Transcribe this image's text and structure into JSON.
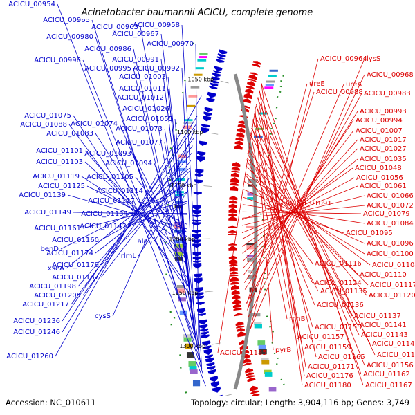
{
  "title": "Acinetobacter baumannii ACICU, complete genome",
  "footer": {
    "accession": "Accession: NC_010611",
    "topology": "Topology: circular; Length: 3,904,116 bp; Genes: 3,749"
  },
  "colors": {
    "forward": "#0000cc",
    "reverse": "#dd0000",
    "backbone": "#888888",
    "gc_skew": "#228b22",
    "background": "#ffffff"
  },
  "scale_labels": [
    "1050 kbp",
    "1100 kbp",
    "1150 kbp",
    "1200 kbp",
    "1250 kbp",
    "1300 kbp",
    "1350 kbp"
  ],
  "forward_labels": [
    "ACICU_00954",
    "ACICU_00965",
    "ACICU_00963",
    "ACICU_00958",
    "ACICU_00980",
    "ACICU_00967",
    "ACICU_00970",
    "ACICU_00986",
    "ACICU_00998",
    "ACICU_00991",
    "ACICU_00995",
    "ACICU_00992",
    "ACICU_01003",
    "ACICU_01011",
    "ACICU_01012",
    "ACICU_01026",
    "ACICU_01075",
    "ACICU_01055",
    "ACICU_01088",
    "ACICU_01074",
    "ACICU_01073",
    "ACICU_01083",
    "ACICU_01077",
    "ACICU_01101",
    "ACICU_01093",
    "ACICU_01103",
    "ACICU_01094",
    "ACICU_01119",
    "ACICU_01105",
    "ACICU_01125",
    "ACICU_01114",
    "ACICU_01139",
    "ACICU_01127",
    "ACICU_01149",
    "ACICU_01134",
    "ACICU_01161",
    "ACICU_01142",
    "ACICU_01160",
    "alaS",
    "benD",
    "ACICU_01174",
    "rlmL",
    "ACICU_01179",
    "xseA",
    "ACICU_01187",
    "ACICU_01198",
    "ACICU_01205",
    "ACICU_01217",
    "cysS",
    "ACICU_01236",
    "ACICU_01246",
    "ACICU_01260"
  ],
  "reverse_labels": [
    "ACICU_00964",
    "lysS",
    "ACICU_00968",
    "ureE",
    "ureA",
    "ACICU_00988",
    "ACICU_00983",
    "ACICU_00993",
    "ACICU_00994",
    "ACICU_01007",
    "ACICU_01017",
    "ACICU_01027",
    "ACICU_01035",
    "ACICU_01048",
    "ACICU_01056",
    "ACICU_01061",
    "ACICU_01066",
    "ACICU_01091",
    "ACICU_01072",
    "ACICU_01079",
    "ACICU_01084",
    "ACICU_01095",
    "ACICU_01096",
    "ACICU_01100",
    "ACICU_01116",
    "ACICU_01104",
    "ACICU_01110",
    "ACICU_01124",
    "ACICU_01117",
    "ACICU_01135",
    "ACICU_01120",
    "ACICU_01136",
    "ACICU_01137",
    "rnhB",
    "ACICU_01141",
    "ACICU_01155",
    "ACICU_01143",
    "ACICU_01157",
    "ACICU_01145",
    "ACICU_01159",
    "ACICU_01150",
    "ACICU_01185",
    "pyrB",
    "ACICU_01165",
    "ACICU_01156",
    "ACICU_01171",
    "ACICU_01162",
    "ACICU_01176",
    "ACICU_01180",
    "ACICU_01167"
  ]
}
